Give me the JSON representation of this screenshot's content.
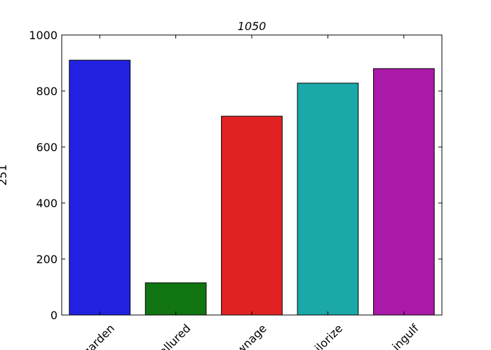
{
  "chart_data": {
    "type": "bar",
    "title": "1050",
    "xlabel": "",
    "ylabel": "251",
    "categories": [
      "garden",
      "allured",
      "wnage",
      "tailorize",
      "ingulf"
    ],
    "values": [
      910,
      115,
      710,
      828,
      880
    ],
    "colors": [
      "#2222e0",
      "#117511",
      "#e02222",
      "#1aa8a8",
      "#aa1aa8"
    ],
    "ylim": [
      0,
      1000
    ],
    "yticks": [
      0,
      200,
      400,
      600,
      800,
      1000
    ],
    "grid": false,
    "legend": "none"
  }
}
